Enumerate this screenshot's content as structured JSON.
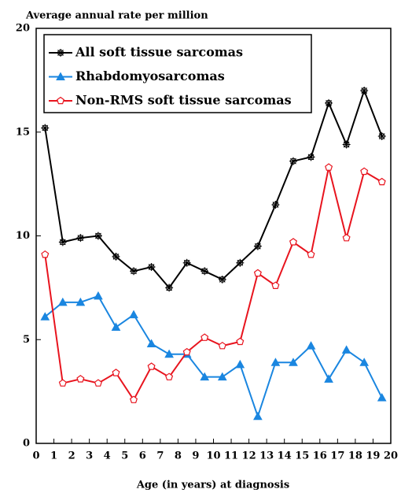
{
  "chart_data": {
    "type": "line",
    "title": "Average annual rate per million",
    "x_label": "Age (in years) at diagnosis",
    "x": [
      0.5,
      1.5,
      2.5,
      3.5,
      4.5,
      5.5,
      6.5,
      7.5,
      8.5,
      9.5,
      10.5,
      11.5,
      12.5,
      13.5,
      14.5,
      15.5,
      16.5,
      17.5,
      18.5,
      19.5
    ],
    "series": [
      {
        "name": "All soft tissue sarcomas",
        "color": "#000000",
        "marker": "star",
        "values": [
          15.2,
          9.7,
          9.9,
          10.0,
          9.0,
          8.3,
          8.5,
          7.5,
          8.7,
          8.3,
          7.9,
          8.7,
          9.5,
          11.5,
          13.6,
          13.8,
          16.4,
          14.4,
          17.0,
          14.8
        ]
      },
      {
        "name": "Rhabdomyosarcomas",
        "color": "#1a86e0",
        "marker": "triangle",
        "values": [
          6.1,
          6.8,
          6.8,
          7.1,
          5.6,
          6.2,
          4.8,
          4.3,
          4.3,
          3.2,
          3.2,
          3.8,
          1.3,
          3.9,
          3.9,
          4.7,
          3.1,
          4.5,
          3.9,
          2.2
        ]
      },
      {
        "name": "Non-RMS soft tissue sarcomas",
        "color": "#e8141e",
        "marker": "pentagon",
        "values": [
          9.1,
          2.9,
          3.1,
          2.9,
          3.4,
          2.1,
          3.7,
          3.2,
          4.4,
          5.1,
          4.7,
          4.9,
          8.2,
          7.6,
          9.7,
          9.1,
          13.3,
          9.9,
          13.1,
          12.6
        ]
      }
    ],
    "xlim": [
      0,
      20
    ],
    "xticks": [
      0,
      1,
      2,
      3,
      4,
      5,
      6,
      7,
      8,
      9,
      10,
      11,
      12,
      13,
      14,
      15,
      16,
      17,
      18,
      19,
      20
    ],
    "ylim": [
      0,
      20
    ],
    "yticks": [
      0,
      5,
      10,
      15,
      20
    ],
    "legend": "upper left"
  }
}
